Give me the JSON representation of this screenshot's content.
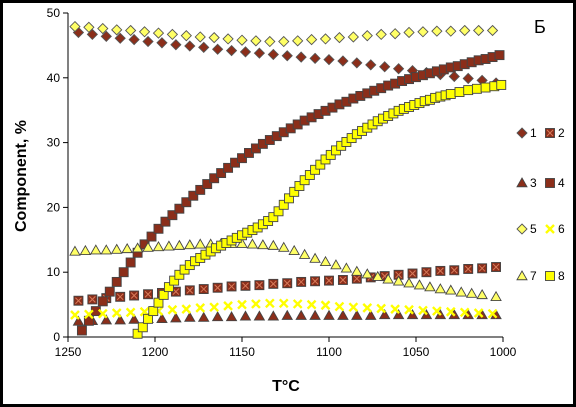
{
  "chart_data": {
    "type": "scatter",
    "panel_label": "Б",
    "xlabel": "T°C",
    "ylabel": "Component, %",
    "xlim": [
      1250,
      1000
    ],
    "ylim": [
      0,
      50
    ],
    "x_reversed": true,
    "x_ticks": [
      1250,
      1200,
      1150,
      1100,
      1050,
      1000
    ],
    "y_ticks": [
      0,
      10,
      20,
      30,
      40,
      50
    ],
    "grid": false,
    "legend_position": "right",
    "series": [
      {
        "name": "1",
        "marker": "diamond",
        "color": "#8B2E1A",
        "x": [
          1244,
          1236,
          1228,
          1220,
          1212,
          1204,
          1196,
          1188,
          1180,
          1172,
          1164,
          1156,
          1148,
          1140,
          1132,
          1124,
          1116,
          1108,
          1100,
          1092,
          1084,
          1076,
          1068,
          1060,
          1052,
          1044,
          1036,
          1028,
          1020,
          1012,
          1004
        ],
        "y": [
          47.0,
          46.7,
          46.4,
          46.1,
          45.9,
          45.6,
          45.4,
          45.1,
          44.9,
          44.7,
          44.4,
          44.2,
          44.0,
          43.8,
          43.6,
          43.4,
          43.2,
          43.0,
          42.8,
          42.6,
          42.3,
          42.0,
          41.7,
          41.4,
          41.1,
          40.8,
          40.5,
          40.2,
          39.9,
          39.6,
          39.2
        ]
      },
      {
        "name": "2",
        "marker": "x-square",
        "color": "#8B2E1A",
        "x": [
          1244,
          1236,
          1228,
          1220,
          1212,
          1204,
          1196,
          1188,
          1180,
          1172,
          1164,
          1156,
          1148,
          1140,
          1132,
          1124,
          1116,
          1108,
          1100,
          1092,
          1084,
          1076,
          1068,
          1060,
          1052,
          1044,
          1036,
          1028,
          1020,
          1012,
          1004
        ],
        "y": [
          5.6,
          5.8,
          6.0,
          6.2,
          6.4,
          6.6,
          6.8,
          7.0,
          7.2,
          7.4,
          7.6,
          7.8,
          7.9,
          8.0,
          8.2,
          8.3,
          8.5,
          8.6,
          8.7,
          8.8,
          9.0,
          9.2,
          9.4,
          9.6,
          9.8,
          10.0,
          10.2,
          10.3,
          10.5,
          10.6,
          10.8
        ]
      },
      {
        "name": "3",
        "marker": "triangle",
        "color": "#8B2E1A",
        "x": [
          1244,
          1236,
          1228,
          1220,
          1212,
          1204,
          1196,
          1188,
          1180,
          1172,
          1164,
          1156,
          1148,
          1140,
          1132,
          1124,
          1116,
          1108,
          1100,
          1092,
          1084,
          1076,
          1068,
          1060,
          1052,
          1044,
          1036,
          1028,
          1020,
          1012,
          1004
        ],
        "y": [
          2.4,
          2.5,
          2.6,
          2.6,
          2.7,
          2.8,
          2.8,
          2.9,
          3.0,
          3.0,
          3.1,
          3.1,
          3.2,
          3.2,
          3.2,
          3.3,
          3.3,
          3.3,
          3.3,
          3.3,
          3.3,
          3.3,
          3.4,
          3.4,
          3.4,
          3.4,
          3.4,
          3.4,
          3.4,
          3.4,
          3.4
        ]
      },
      {
        "name": "4",
        "marker": "square",
        "color": "#8B2E1A",
        "x": [
          1242,
          1238,
          1234,
          1230,
          1226,
          1222,
          1218,
          1214,
          1210,
          1206,
          1202,
          1198,
          1194,
          1190,
          1186,
          1182,
          1178,
          1174,
          1170,
          1166,
          1162,
          1158,
          1154,
          1150,
          1146,
          1142,
          1138,
          1134,
          1130,
          1126,
          1122,
          1118,
          1114,
          1110,
          1106,
          1102,
          1098,
          1094,
          1090,
          1086,
          1082,
          1078,
          1074,
          1070,
          1066,
          1062,
          1058,
          1054,
          1050,
          1046,
          1042,
          1038,
          1034,
          1030,
          1026,
          1022,
          1018,
          1014,
          1010,
          1006,
          1002
        ],
        "y": [
          1.0,
          2.5,
          4.0,
          5.5,
          7.0,
          8.5,
          10.0,
          11.5,
          13.0,
          14.3,
          15.5,
          16.7,
          17.8,
          18.8,
          19.8,
          20.8,
          21.8,
          22.7,
          23.6,
          24.5,
          25.3,
          26.1,
          26.9,
          27.6,
          28.4,
          29.1,
          29.8,
          30.4,
          31.0,
          31.6,
          32.2,
          32.8,
          33.4,
          33.9,
          34.4,
          34.9,
          35.4,
          35.9,
          36.3,
          36.8,
          37.2,
          37.6,
          38.0,
          38.4,
          38.8,
          39.1,
          39.5,
          39.8,
          40.1,
          40.4,
          40.7,
          41.0,
          41.3,
          41.6,
          41.8,
          42.1,
          42.4,
          42.7,
          42.9,
          43.2,
          43.5
        ]
      },
      {
        "name": "5",
        "marker": "diamond",
        "color": "#FFFF66",
        "x": [
          1246,
          1238,
          1230,
          1222,
          1214,
          1206,
          1198,
          1190,
          1182,
          1174,
          1166,
          1158,
          1150,
          1142,
          1134,
          1126,
          1118,
          1110,
          1102,
          1094,
          1086,
          1078,
          1070,
          1062,
          1054,
          1046,
          1038,
          1030,
          1022,
          1014,
          1006
        ],
        "y": [
          47.9,
          47.8,
          47.6,
          47.4,
          47.3,
          47.1,
          46.9,
          46.7,
          46.5,
          46.3,
          46.2,
          46.0,
          45.8,
          45.7,
          45.6,
          45.6,
          45.7,
          45.9,
          46.0,
          46.2,
          46.3,
          46.5,
          46.7,
          46.8,
          47.0,
          47.1,
          47.2,
          47.2,
          47.3,
          47.3,
          47.3
        ]
      },
      {
        "name": "6",
        "marker": "x",
        "color": "#FFFF00",
        "x": [
          1246,
          1238,
          1230,
          1222,
          1214,
          1206,
          1198,
          1190,
          1182,
          1174,
          1166,
          1158,
          1150,
          1142,
          1134,
          1126,
          1118,
          1110,
          1102,
          1094,
          1086,
          1078,
          1070,
          1062,
          1054,
          1046,
          1038,
          1030,
          1022,
          1014,
          1006
        ],
        "y": [
          3.4,
          3.5,
          3.6,
          3.7,
          3.8,
          3.9,
          4.0,
          4.2,
          4.3,
          4.5,
          4.6,
          4.8,
          5.0,
          5.1,
          5.2,
          5.2,
          5.1,
          5.0,
          4.9,
          4.7,
          4.6,
          4.5,
          4.4,
          4.3,
          4.2,
          4.1,
          4.0,
          3.9,
          3.8,
          3.7,
          3.6
        ]
      },
      {
        "name": "7",
        "marker": "triangle",
        "color": "#FFFF66",
        "x": [
          1246,
          1240,
          1234,
          1228,
          1222,
          1216,
          1210,
          1204,
          1198,
          1192,
          1186,
          1180,
          1174,
          1168,
          1162,
          1156,
          1150,
          1144,
          1138,
          1132,
          1126,
          1120,
          1114,
          1108,
          1102,
          1096,
          1090,
          1084,
          1078,
          1072,
          1066,
          1060,
          1054,
          1048,
          1042,
          1036,
          1030,
          1024,
          1018,
          1012,
          1004
        ],
        "y": [
          13.2,
          13.3,
          13.4,
          13.4,
          13.5,
          13.6,
          13.7,
          13.8,
          13.9,
          14.0,
          14.1,
          14.2,
          14.3,
          14.3,
          14.4,
          14.4,
          14.4,
          14.3,
          14.2,
          14.1,
          13.8,
          13.3,
          12.7,
          12.1,
          11.6,
          11.1,
          10.6,
          10.1,
          9.7,
          9.3,
          8.9,
          8.6,
          8.3,
          8.0,
          7.7,
          7.4,
          7.2,
          6.9,
          6.7,
          6.5,
          6.2
        ]
      },
      {
        "name": "8",
        "marker": "square",
        "color": "#FFFF00",
        "x": [
          1210,
          1207,
          1204,
          1201,
          1198,
          1195,
          1192,
          1189,
          1186,
          1183,
          1180,
          1177,
          1174,
          1171,
          1168,
          1165,
          1162,
          1159,
          1156,
          1153,
          1150,
          1147,
          1144,
          1141,
          1138,
          1135,
          1132,
          1129,
          1126,
          1123,
          1120,
          1117,
          1114,
          1111,
          1108,
          1105,
          1102,
          1099,
          1096,
          1093,
          1090,
          1087,
          1084,
          1081,
          1078,
          1075,
          1072,
          1069,
          1066,
          1063,
          1060,
          1057,
          1054,
          1051,
          1048,
          1045,
          1042,
          1039,
          1036,
          1033,
          1030,
          1025,
          1020,
          1015,
          1010,
          1005,
          1001
        ],
        "y": [
          0.5,
          1.5,
          2.8,
          4.0,
          5.3,
          6.5,
          7.7,
          8.7,
          9.6,
          10.4,
          11.1,
          11.7,
          12.2,
          12.7,
          13.2,
          13.7,
          14.1,
          14.5,
          14.9,
          15.3,
          15.7,
          16.1,
          16.5,
          16.9,
          17.4,
          17.9,
          18.5,
          19.4,
          20.4,
          21.4,
          22.4,
          23.3,
          24.2,
          25.0,
          25.8,
          26.6,
          27.4,
          28.1,
          28.8,
          29.5,
          30.1,
          30.7,
          31.3,
          31.8,
          32.3,
          32.8,
          33.3,
          33.7,
          34.1,
          34.5,
          34.9,
          35.2,
          35.5,
          35.8,
          36.1,
          36.4,
          36.6,
          36.9,
          37.1,
          37.3,
          37.5,
          37.8,
          38.1,
          38.3,
          38.5,
          38.7,
          38.9
        ]
      }
    ]
  }
}
